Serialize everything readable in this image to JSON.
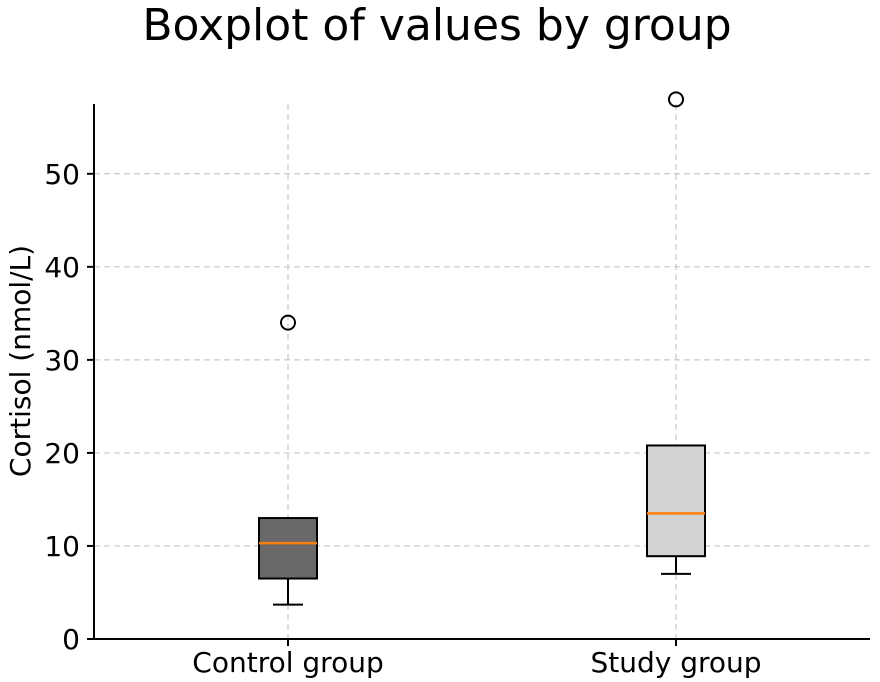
{
  "chart_data": {
    "type": "boxplot",
    "title": "Boxplot of values by group",
    "xlabel": "",
    "ylabel": "Cortisol (nmol/L)",
    "ylim": [
      0,
      57.5
    ],
    "yticks": [
      0,
      10,
      20,
      30,
      40,
      50
    ],
    "grid": true,
    "categories": [
      "Control group",
      "Study group"
    ],
    "boxes": [
      {
        "category": "Control group",
        "whisker_low": 3.7,
        "q1": 6.5,
        "median": 10.3,
        "q3": 13.0,
        "whisker_high": 13.0,
        "outliers": [
          34.0
        ],
        "fill": "#696969"
      },
      {
        "category": "Study group",
        "whisker_low": 7.0,
        "q1": 8.9,
        "median": 13.5,
        "q3": 20.8,
        "whisker_high": 20.8,
        "outliers": [
          58.0
        ],
        "fill": "#d3d3d3"
      }
    ],
    "median_color": "#ff7f0e"
  }
}
